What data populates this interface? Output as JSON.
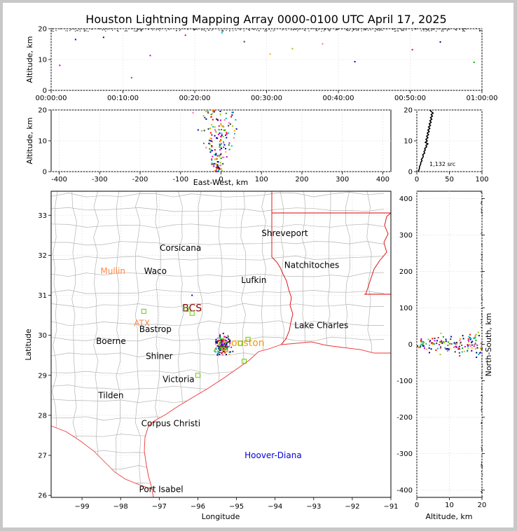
{
  "title": "Houston Lightning Mapping Array 0000-0100 UTC April 17, 2025",
  "colors": {
    "frame": "#c8c8c8",
    "state_border": "#dd0000",
    "county_border": "#b4b4b4",
    "coast": "#ee3333",
    "grid": "#e6e6e6",
    "source_palette": [
      "#0000cc",
      "#000080",
      "#00aa00",
      "#cc00cc",
      "#ff0000",
      "#00bbbb",
      "#333333",
      "#ffaa00",
      "#88cc00",
      "#ff66aa"
    ]
  },
  "chart_data": [
    {
      "id": "altitude_time",
      "type": "scatter",
      "xlabel": "",
      "ylabel": "Altitude, km",
      "x_ticks": [
        "00:00:00",
        "00:10:00",
        "00:20:00",
        "00:30:00",
        "00:40:00",
        "00:50:00",
        "01:00:00"
      ],
      "xlim_minutes": [
        0,
        60
      ],
      "ylim": [
        0,
        20
      ],
      "y_ticks": [
        0,
        10,
        20
      ],
      "points_minutes_km": [
        [
          3.4,
          16.5
        ],
        [
          7.3,
          17.2
        ],
        [
          11.2,
          4.1
        ],
        [
          13.8,
          11.3
        ],
        [
          18.7,
          17.9
        ],
        [
          23.8,
          18.7
        ],
        [
          26.9,
          15.8
        ],
        [
          30.5,
          11.8
        ],
        [
          33.6,
          13.5
        ],
        [
          37.8,
          15.1
        ],
        [
          42.3,
          9.3
        ],
        [
          54.2,
          15.7
        ],
        [
          58.9,
          9.1
        ],
        [
          1.2,
          8.1
        ],
        [
          50.3,
          13.2
        ]
      ]
    },
    {
      "id": "altitude_east_west",
      "type": "scatter",
      "xlabel": "East-West, km",
      "ylabel": "Altitude, km",
      "xlim": [
        -420,
        420
      ],
      "ylim": [
        0,
        20
      ],
      "x_ticks": [
        -400,
        -300,
        -200,
        -100,
        0,
        100,
        200,
        300,
        400
      ],
      "y_ticks": [
        0,
        10,
        20
      ]
    },
    {
      "id": "altitude_histogram",
      "type": "line",
      "xlim": [
        0,
        100
      ],
      "ylim": [
        0,
        20
      ],
      "x_ticks": [
        0,
        50,
        100
      ],
      "y_ticks": [
        0,
        10,
        20
      ],
      "annotation": "1,132 src",
      "profile_count_altitude": [
        [
          2,
          0
        ],
        [
          3,
          0.5
        ],
        [
          4,
          1
        ],
        [
          4,
          1.5
        ],
        [
          5,
          2
        ],
        [
          6,
          2.5
        ],
        [
          6,
          3
        ],
        [
          8,
          3.5
        ],
        [
          7,
          4
        ],
        [
          9,
          4.5
        ],
        [
          10,
          5
        ],
        [
          9,
          5.5
        ],
        [
          12,
          6
        ],
        [
          11,
          6.5
        ],
        [
          13,
          7
        ],
        [
          12,
          7.5
        ],
        [
          15,
          8
        ],
        [
          14,
          8.5
        ],
        [
          17,
          9
        ],
        [
          13,
          9.5
        ],
        [
          16,
          10
        ],
        [
          14,
          10.5
        ],
        [
          17,
          11
        ],
        [
          15,
          11.5
        ],
        [
          18,
          12
        ],
        [
          16,
          12.5
        ],
        [
          19,
          13
        ],
        [
          17,
          13.5
        ],
        [
          20,
          14
        ],
        [
          18,
          14.5
        ],
        [
          21,
          15
        ],
        [
          19,
          15.5
        ],
        [
          22,
          16
        ],
        [
          20,
          16.5
        ],
        [
          23,
          17
        ],
        [
          21,
          17.5
        ],
        [
          24,
          18
        ],
        [
          22,
          18.5
        ],
        [
          25,
          19
        ],
        [
          22,
          19.5
        ],
        [
          20,
          20
        ]
      ]
    },
    {
      "id": "plan_view",
      "type": "scatter",
      "xlabel": "Longitude",
      "ylabel": "Latitude",
      "xlim": [
        -99.8,
        -91
      ],
      "ylim": [
        25.95,
        33.6
      ],
      "x_ticks": [
        -99,
        -98,
        -97,
        -96,
        -95,
        -94,
        -93,
        -92,
        -91
      ],
      "y_ticks": [
        26,
        27,
        28,
        29,
        30,
        31,
        32,
        33
      ],
      "cities": [
        {
          "name": "Shreveport",
          "lon": -93.75,
          "lat": 32.55,
          "color": "#000000"
        },
        {
          "name": "Corsicana",
          "lon": -96.45,
          "lat": 32.18,
          "color": "#000000"
        },
        {
          "name": "Natchitoches",
          "lon": -93.05,
          "lat": 31.75,
          "color": "#000000"
        },
        {
          "name": "Mullin",
          "lon": -98.2,
          "lat": 31.6,
          "color": "#ff8844"
        },
        {
          "name": "Waco",
          "lon": -97.1,
          "lat": 31.6,
          "color": "#000000"
        },
        {
          "name": "Lufkin",
          "lon": -94.55,
          "lat": 31.38,
          "color": "#000000"
        },
        {
          "name": "BCS",
          "lon": -96.15,
          "lat": 30.67,
          "color": "#880000"
        },
        {
          "name": "ATX",
          "lon": -97.45,
          "lat": 30.3,
          "color": "#ff8844"
        },
        {
          "name": "Lake Charles",
          "lon": -92.8,
          "lat": 30.25,
          "color": "#000000"
        },
        {
          "name": "Bastrop",
          "lon": -97.1,
          "lat": 30.15,
          "color": "#000000"
        },
        {
          "name": "Boerne",
          "lon": -98.25,
          "lat": 29.85,
          "color": "#000000"
        },
        {
          "name": "Houston",
          "lon": -94.8,
          "lat": 29.8,
          "color": "#ff9900"
        },
        {
          "name": "Shiner",
          "lon": -97.0,
          "lat": 29.48,
          "color": "#000000"
        },
        {
          "name": "Victoria",
          "lon": -96.5,
          "lat": 28.9,
          "color": "#000000"
        },
        {
          "name": "Tilden",
          "lon": -98.25,
          "lat": 28.5,
          "color": "#000000"
        },
        {
          "name": "Corpus Christi",
          "lon": -96.7,
          "lat": 27.8,
          "color": "#000000"
        },
        {
          "name": "Hoover-Diana",
          "lon": -94.05,
          "lat": 27.0,
          "color": "#0000dd"
        },
        {
          "name": "Port Isabel",
          "lon": -96.95,
          "lat": 26.15,
          "color": "#000000"
        }
      ],
      "stations_lon_lat": [
        [
          -97.4,
          30.6
        ],
        [
          -96.3,
          30.65
        ],
        [
          -96.0,
          29.0
        ],
        [
          -94.8,
          29.35
        ],
        [
          -94.9,
          29.8
        ],
        [
          -96.15,
          30.55
        ],
        [
          -94.7,
          29.9
        ]
      ]
    },
    {
      "id": "north_south_altitude",
      "type": "scatter",
      "xlabel": "Altitude, km",
      "ylabel": "North-South, km",
      "xlim": [
        0,
        20
      ],
      "ylim": [
        -420,
        420
      ],
      "x_ticks": [
        0,
        10,
        20
      ],
      "y_ticks": [
        -400,
        -300,
        -200,
        -100,
        0,
        100,
        200,
        300,
        400
      ]
    }
  ]
}
